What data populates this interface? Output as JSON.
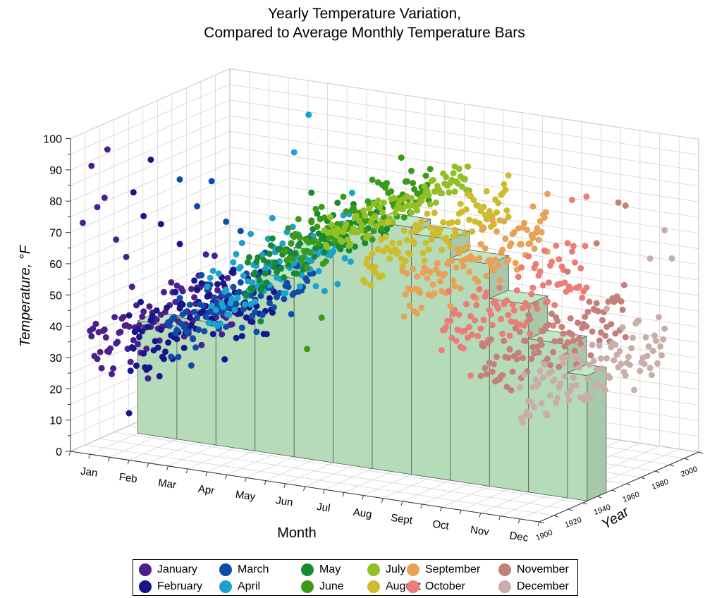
{
  "chart_data": {
    "type": "scatter",
    "title": [
      "Yearly Temperature Variation,",
      "Compared to Average Monthly Temperature Bars"
    ],
    "xlabel": "Month",
    "ylabel": "Temperature, °F",
    "zlabel": "Year",
    "categories": [
      "Jan",
      "Feb",
      "Mar",
      "Apr",
      "May",
      "Jun",
      "Jul",
      "Aug",
      "Sept",
      "Oct",
      "Nov",
      "Dec"
    ],
    "ylim": [
      0,
      100
    ],
    "yticks": [
      "0",
      "10",
      "20",
      "30",
      "40",
      "50",
      "60",
      "70",
      "80",
      "90",
      "100"
    ],
    "zlim": [
      1900,
      2010
    ],
    "zticks": [
      "1900",
      "1920",
      "1940",
      "1960",
      "1980",
      "2000"
    ],
    "grid": true,
    "legend_position": "bottom",
    "average_bars": [
      36,
      39,
      46,
      57,
      67,
      75,
      79,
      77,
      71,
      60,
      49,
      40
    ],
    "bar_color": "#b5dbb9",
    "series": [
      {
        "name": "January",
        "color": "#4b1f8c",
        "mean": 33,
        "spread": 6.5,
        "outliers": [
          [
            1905,
            78
          ],
          [
            1912,
            95
          ],
          [
            1918,
            65
          ],
          [
            1925,
            58
          ],
          [
            1901,
            92
          ],
          [
            1895,
            75
          ],
          [
            1910,
            80
          ]
        ]
      },
      {
        "name": "February",
        "color": "#16168c",
        "mean": 35,
        "spread": 6.5,
        "outliers": [
          [
            1903,
            85
          ],
          [
            1915,
            93
          ],
          [
            1922,
            71
          ],
          [
            1935,
            62
          ],
          [
            1900,
            15
          ],
          [
            1910,
            76
          ]
        ]
      },
      {
        "name": "March",
        "color": "#0f4ba8",
        "mean": 43,
        "spread": 5.5,
        "outliers": [
          [
            1908,
            90
          ],
          [
            1930,
            85
          ],
          [
            1940,
            70
          ],
          [
            1950,
            65
          ],
          [
            1920,
            79
          ]
        ]
      },
      {
        "name": "April",
        "color": "#1aa1cc",
        "mean": 55,
        "spread": 5.5,
        "outliers": [
          [
            1930,
            70
          ],
          [
            1960,
            90
          ],
          [
            1970,
            100
          ],
          [
            1945,
            72
          ]
        ]
      },
      {
        "name": "May",
        "color": "#168a33",
        "mean": 65,
        "spread": 4.5,
        "outliers": [
          [
            1945,
            82
          ],
          [
            1910,
            48
          ]
        ]
      },
      {
        "name": "June",
        "color": "#3c9a19",
        "mean": 74,
        "spread": 4.5,
        "outliers": [
          [
            1960,
            85
          ],
          [
            1980,
            88
          ],
          [
            1925,
            48
          ],
          [
            1915,
            40
          ]
        ]
      },
      {
        "name": "July",
        "color": "#92c024",
        "mean": 79,
        "spread": 3.0,
        "outliers": [
          [
            1990,
            85
          ],
          [
            1960,
            81
          ]
        ]
      },
      {
        "name": "August",
        "color": "#cdbd2c",
        "mean": 74,
        "spread": 4.0,
        "outliers": [
          [
            2000,
            82
          ],
          [
            1985,
            80
          ]
        ]
      },
      {
        "name": "September",
        "color": "#e8a257",
        "mean": 66,
        "spread": 5.0,
        "outliers": [
          [
            1990,
            76
          ],
          [
            2000,
            78
          ],
          [
            1910,
            58
          ]
        ]
      },
      {
        "name": "October",
        "color": "#ea7d77",
        "mean": 56,
        "spread": 5.5,
        "outliers": [
          [
            1990,
            80
          ],
          [
            2000,
            79
          ],
          [
            1960,
            68
          ],
          [
            1920,
            38
          ]
        ]
      },
      {
        "name": "November",
        "color": "#c4807a",
        "mean": 46,
        "spread": 6.0,
        "outliers": [
          [
            1995,
            80
          ],
          [
            2000,
            78
          ],
          [
            1980,
            70
          ],
          [
            1960,
            65
          ]
        ]
      },
      {
        "name": "December",
        "color": "#c9ada9",
        "mean": 37,
        "spread": 6.0,
        "outliers": [
          [
            2000,
            72
          ],
          [
            1990,
            65
          ],
          [
            2005,
            62
          ],
          [
            1960,
            55
          ]
        ]
      }
    ]
  }
}
